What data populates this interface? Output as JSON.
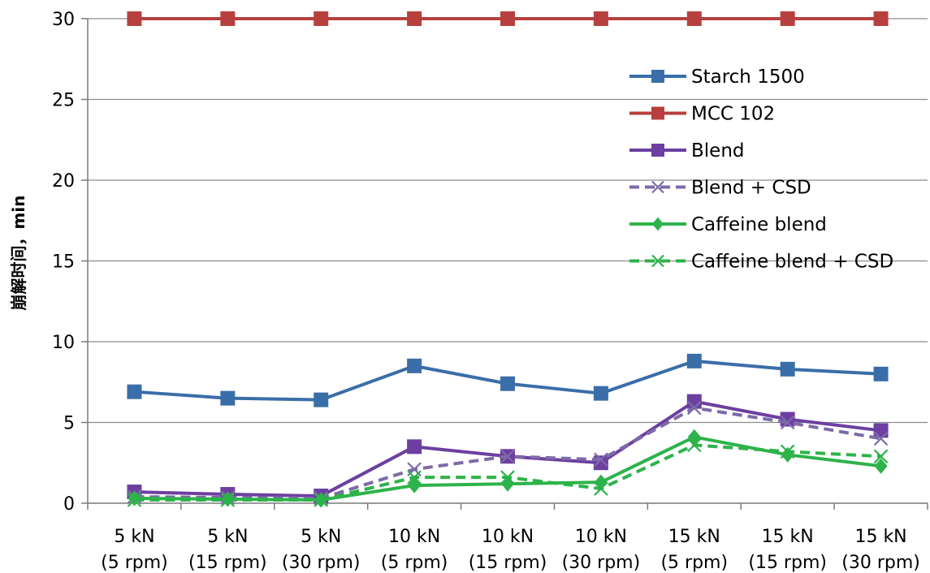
{
  "chart_data": {
    "type": "line",
    "title": "",
    "xlabel": "",
    "ylabel": "崩解时间，min",
    "ylim": [
      0,
      30
    ],
    "yticks": [
      0,
      5,
      10,
      15,
      20,
      25,
      30
    ],
    "grid": "horizontal",
    "legend_position": "right",
    "categories": [
      [
        "5 kN",
        "(5 rpm)"
      ],
      [
        "5 kN",
        "(15 rpm)"
      ],
      [
        "5 kN",
        "(30 rpm)"
      ],
      [
        "10 kN",
        "(5 rpm)"
      ],
      [
        "10 kN",
        "(15 rpm)"
      ],
      [
        "10 kN",
        "(30 rpm)"
      ],
      [
        "15 kN",
        "(5 rpm)"
      ],
      [
        "15 kN",
        "(15 rpm)"
      ],
      [
        "15 kN",
        "(30 rpm)"
      ]
    ],
    "series": [
      {
        "name": "Starch 1500",
        "color": "#3A6EA8",
        "dash": false,
        "marker": "square",
        "values": [
          6.9,
          6.5,
          6.4,
          8.5,
          7.4,
          6.8,
          8.8,
          8.3,
          8.0
        ]
      },
      {
        "name": "MCC 102",
        "color": "#B7403E",
        "dash": false,
        "marker": "square",
        "values": [
          30,
          30,
          30,
          30,
          30,
          30,
          30,
          30,
          30
        ]
      },
      {
        "name": "Blend",
        "color": "#6C3FA0",
        "dash": false,
        "marker": "square",
        "values": [
          0.7,
          0.55,
          0.45,
          3.5,
          2.9,
          2.5,
          6.3,
          5.2,
          4.5
        ]
      },
      {
        "name": "Blend + CSD",
        "color": "#7E6AA8",
        "dash": true,
        "marker": "x",
        "values": [
          0.4,
          0.35,
          0.3,
          2.1,
          2.9,
          2.7,
          5.9,
          5.0,
          4.0
        ]
      },
      {
        "name": "Caffeine blend",
        "color": "#2EB34A",
        "dash": false,
        "marker": "diamond",
        "values": [
          0.3,
          0.25,
          0.2,
          1.1,
          1.2,
          1.3,
          4.1,
          3.0,
          2.3
        ]
      },
      {
        "name": "Caffeine blend + CSD",
        "color": "#2EB34A",
        "dash": true,
        "marker": "x",
        "values": [
          0.2,
          0.2,
          0.2,
          1.6,
          1.6,
          0.9,
          3.6,
          3.2,
          2.9
        ]
      }
    ]
  }
}
